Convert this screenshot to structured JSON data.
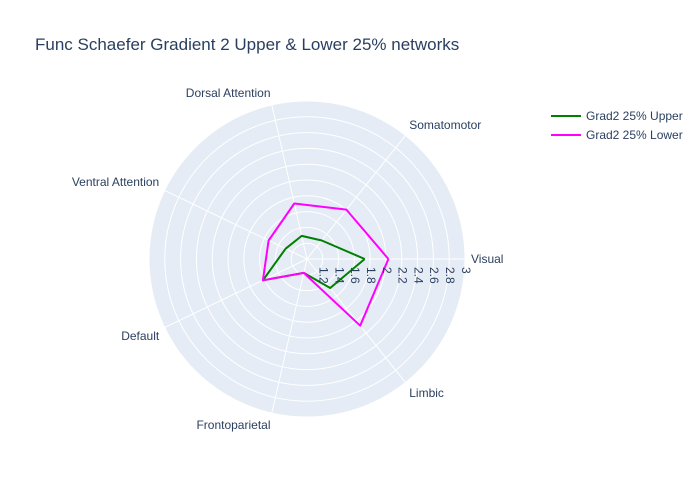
{
  "chart_data": {
    "type": "radar",
    "title": "Func Schaefer Gradient 2 Upper & Lower 25% networks",
    "categories": [
      "Visual",
      "Somatomotor",
      "Dorsal Attention",
      "Ventral Attention",
      "Default",
      "Frontoparietal",
      "Limbic"
    ],
    "radial_range": [
      1.0,
      3.0
    ],
    "radial_ticks": [
      "1.2",
      "1.4",
      "1.6",
      "1.8",
      "2",
      "2.2",
      "2.4",
      "2.6",
      "2.8",
      "3"
    ],
    "grid": true,
    "legend_position": "top-right",
    "series": [
      {
        "name": "Grad2 25% Upper",
        "color": "#008000",
        "values": [
          1.73,
          1.3,
          1.3,
          1.3,
          1.62,
          1.18,
          1.47
        ]
      },
      {
        "name": "Grad2 25% Lower",
        "color": "#ff00ff",
        "values": [
          2.03,
          1.8,
          1.72,
          1.54,
          1.62,
          1.18,
          2.08
        ]
      }
    ]
  }
}
